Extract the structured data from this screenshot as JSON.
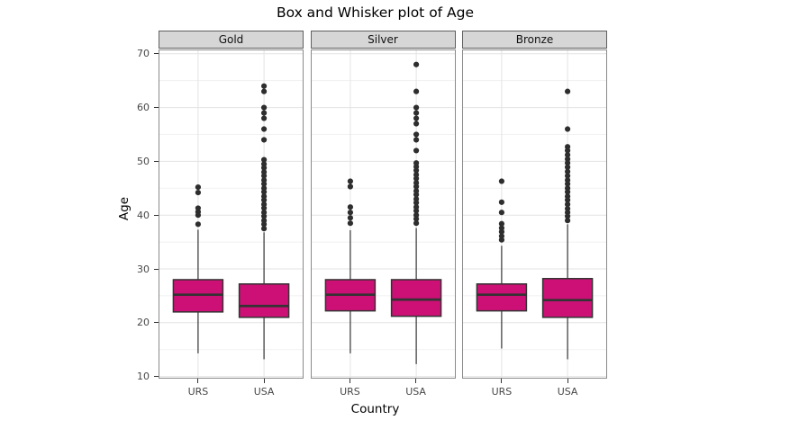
{
  "chart_data": {
    "type": "boxplot",
    "title": "Box and Whisker plot of Age",
    "xlabel": "Country",
    "ylabel": "Age",
    "categories": [
      "URS",
      "USA"
    ],
    "y_axis": {
      "ticks": [
        10,
        20,
        30,
        40,
        50,
        60,
        70
      ],
      "minor_ticks": [
        15,
        25,
        35,
        45,
        55,
        65
      ],
      "range": [
        9.6,
        70.8
      ]
    },
    "layout": {
      "legend": "none",
      "grid": "major+minor horizontal, major vertical",
      "facet_position": "top"
    },
    "facets": [
      {
        "label": "Gold",
        "boxes": [
          {
            "category": "URS",
            "whisker_low": 14.3,
            "q1": 22.0,
            "median": 25.2,
            "q3": 28.0,
            "whisker_high": 37.3,
            "outliers": [
              38.3,
              40.0,
              40.6,
              41.3,
              44.2,
              45.2
            ]
          },
          {
            "category": "USA",
            "whisker_low": 13.2,
            "q1": 21.0,
            "median": 23.1,
            "q3": 27.2,
            "whisker_high": 36.8,
            "outliers": [
              37.5,
              38.3,
              39.0,
              39.8,
              40.5,
              41.3,
              42.0,
              42.8,
              43.5,
              44.3,
              45.0,
              45.8,
              46.5,
              47.3,
              48.0,
              48.8,
              49.5,
              50.3,
              54.0,
              56.0,
              58.0,
              59.0,
              60.0,
              63.0,
              64.0
            ]
          }
        ]
      },
      {
        "label": "Silver",
        "boxes": [
          {
            "category": "URS",
            "whisker_low": 14.3,
            "q1": 22.2,
            "median": 25.2,
            "q3": 28.0,
            "whisker_high": 37.2,
            "outliers": [
              38.5,
              39.5,
              40.5,
              41.5,
              45.3,
              46.3
            ]
          },
          {
            "category": "USA",
            "whisker_low": 12.3,
            "q1": 21.2,
            "median": 24.3,
            "q3": 28.0,
            "whisker_high": 37.6,
            "outliers": [
              38.5,
              39.3,
              40.0,
              40.8,
              41.5,
              42.3,
              43.0,
              43.8,
              44.5,
              45.3,
              46.0,
              46.8,
              47.5,
              48.3,
              49.0,
              49.7,
              52.0,
              54.0,
              55.0,
              57.0,
              58.0,
              59.0,
              60.0,
              63.0,
              68.0
            ]
          }
        ]
      },
      {
        "label": "Bronze",
        "boxes": [
          {
            "category": "URS",
            "whisker_low": 15.2,
            "q1": 22.2,
            "median": 25.2,
            "q3": 27.2,
            "whisker_high": 34.3,
            "outliers": [
              35.4,
              36.1,
              36.9,
              37.6,
              38.4,
              40.5,
              42.4,
              46.3
            ]
          },
          {
            "category": "USA",
            "whisker_low": 13.2,
            "q1": 21.0,
            "median": 24.2,
            "q3": 28.2,
            "whisker_high": 38.3,
            "outliers": [
              39.0,
              39.8,
              40.5,
              41.2,
              42.0,
              42.8,
              43.5,
              44.3,
              45.0,
              45.8,
              46.5,
              47.3,
              48.1,
              48.9,
              49.7,
              50.4,
              51.2,
              52.0,
              52.7,
              56.0,
              63.0
            ]
          }
        ]
      }
    ],
    "colors": {
      "box_fill": "#CD1076",
      "box_stroke": "#333333",
      "median": "#333333",
      "whisker": "#333333",
      "point": "#2e2e2e",
      "grid_major": "#e3e3e3",
      "grid_minor": "#f1f1f1",
      "panel_border": "#8a8a8a",
      "panel_bg": "#ffffff",
      "strip_fill": "#D6D6D6",
      "strip_border": "#5f5f5f",
      "tick": "#333333",
      "tick_text": "#474747",
      "text": "#000000"
    }
  }
}
